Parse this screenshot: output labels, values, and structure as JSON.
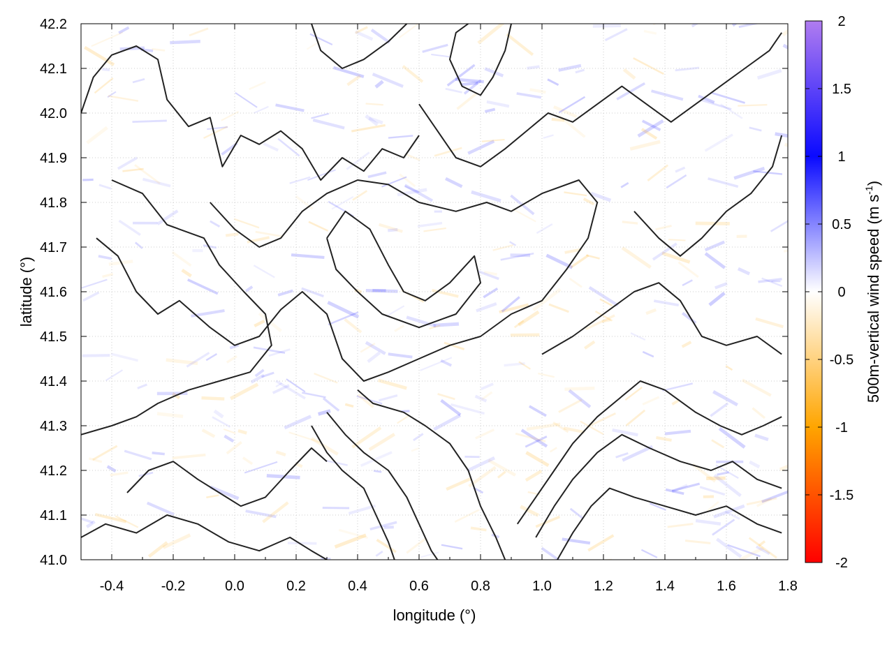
{
  "chart_data": {
    "type": "heatmap",
    "xlabel": "longitude (°)",
    "ylabel": "latitude (°)",
    "xlim": [
      -0.5,
      1.8
    ],
    "ylim": [
      41.0,
      42.2
    ],
    "x_ticks": [
      -0.4,
      -0.2,
      0.0,
      0.2,
      0.4,
      0.6,
      0.8,
      1.0,
      1.2,
      1.4,
      1.6,
      1.8
    ],
    "y_ticks": [
      41.0,
      41.1,
      41.2,
      41.3,
      41.4,
      41.5,
      41.6,
      41.7,
      41.8,
      41.9,
      42.0,
      42.1,
      42.2
    ],
    "x_tick_labels": [
      "-0.4",
      "-0.2",
      "0.0",
      "0.2",
      "0.4",
      "0.6",
      "0.8",
      "1.0",
      "1.2",
      "1.4",
      "1.6",
      "1.8"
    ],
    "y_tick_labels": [
      "41.0",
      "41.1",
      "41.2",
      "41.3",
      "41.4",
      "41.5",
      "41.6",
      "41.7",
      "41.8",
      "41.9",
      "42.0",
      "42.1",
      "42.2"
    ],
    "grid": true,
    "colorbar": {
      "label_main": "500m-vertical wind speed (m s",
      "label_sup": "-1",
      "label_end": ")",
      "range": [
        -2,
        2
      ],
      "ticks": [
        2,
        1.5,
        1,
        0.5,
        0,
        -0.5,
        -1,
        -1.5,
        -2
      ],
      "tick_labels": [
        "2",
        "1.5",
        "1",
        "0.5",
        "0",
        "-0.5",
        "-1",
        "-1.5",
        "-2"
      ],
      "colors": {
        "2": "#b07cf0",
        "1": "#0a0aff",
        "0": "#ffffff",
        "-1": "#ffa500",
        "-2": "#ff0000"
      }
    },
    "contour_color": "#222222",
    "contours": [
      [
        [
          -0.5,
          42.0
        ],
        [
          -0.46,
          42.08
        ],
        [
          -0.4,
          42.13
        ],
        [
          -0.32,
          42.15
        ],
        [
          -0.25,
          42.12
        ],
        [
          -0.22,
          42.03
        ],
        [
          -0.15,
          41.97
        ],
        [
          -0.08,
          41.99
        ],
        [
          -0.04,
          41.88
        ],
        [
          0.02,
          41.95
        ],
        [
          0.08,
          41.93
        ],
        [
          0.15,
          41.96
        ],
        [
          0.22,
          41.92
        ],
        [
          0.28,
          41.85
        ],
        [
          0.35,
          41.9
        ],
        [
          0.42,
          41.87
        ],
        [
          0.48,
          41.92
        ],
        [
          0.55,
          41.9
        ],
        [
          0.6,
          41.95
        ]
      ],
      [
        [
          -0.4,
          41.85
        ],
        [
          -0.3,
          41.82
        ],
        [
          -0.22,
          41.75
        ],
        [
          -0.1,
          41.72
        ],
        [
          -0.05,
          41.66
        ],
        [
          0.03,
          41.6
        ],
        [
          0.1,
          41.55
        ],
        [
          0.12,
          41.48
        ],
        [
          0.05,
          41.42
        ],
        [
          -0.05,
          41.4
        ],
        [
          -0.15,
          41.38
        ],
        [
          -0.25,
          41.35
        ],
        [
          -0.32,
          41.32
        ],
        [
          -0.4,
          41.3
        ],
        [
          -0.5,
          41.28
        ]
      ],
      [
        [
          -0.45,
          41.72
        ],
        [
          -0.38,
          41.68
        ],
        [
          -0.32,
          41.6
        ],
        [
          -0.25,
          41.55
        ],
        [
          -0.18,
          41.58
        ],
        [
          -0.08,
          41.52
        ],
        [
          0.0,
          41.48
        ],
        [
          0.08,
          41.5
        ],
        [
          0.15,
          41.56
        ],
        [
          0.22,
          41.6
        ],
        [
          0.3,
          41.55
        ],
        [
          0.35,
          41.45
        ],
        [
          0.42,
          41.4
        ],
        [
          0.5,
          41.42
        ],
        [
          0.6,
          41.45
        ],
        [
          0.7,
          41.48
        ],
        [
          0.8,
          41.5
        ],
        [
          0.9,
          41.55
        ],
        [
          1.0,
          41.58
        ],
        [
          1.08,
          41.65
        ],
        [
          1.15,
          41.72
        ],
        [
          1.18,
          41.8
        ],
        [
          1.12,
          41.85
        ],
        [
          1.0,
          41.82
        ],
        [
          0.9,
          41.78
        ],
        [
          0.82,
          41.8
        ],
        [
          0.72,
          41.78
        ],
        [
          0.6,
          41.8
        ],
        [
          0.5,
          41.84
        ],
        [
          0.4,
          41.85
        ],
        [
          0.3,
          41.82
        ],
        [
          0.22,
          41.78
        ],
        [
          0.15,
          41.72
        ],
        [
          0.08,
          41.7
        ],
        [
          0.0,
          41.74
        ],
        [
          -0.08,
          41.8
        ]
      ],
      [
        [
          0.3,
          41.72
        ],
        [
          0.36,
          41.78
        ],
        [
          0.44,
          41.74
        ],
        [
          0.5,
          41.66
        ],
        [
          0.55,
          41.6
        ],
        [
          0.62,
          41.58
        ],
        [
          0.7,
          41.62
        ],
        [
          0.78,
          41.68
        ],
        [
          0.8,
          41.62
        ],
        [
          0.72,
          41.55
        ],
        [
          0.6,
          41.52
        ],
        [
          0.48,
          41.55
        ],
        [
          0.4,
          41.6
        ],
        [
          0.33,
          41.65
        ],
        [
          0.3,
          41.72
        ]
      ],
      [
        [
          0.4,
          41.38
        ],
        [
          0.45,
          41.35
        ],
        [
          0.55,
          41.33
        ],
        [
          0.62,
          41.3
        ],
        [
          0.7,
          41.26
        ],
        [
          0.76,
          41.2
        ],
        [
          0.8,
          41.12
        ],
        [
          0.85,
          41.05
        ],
        [
          0.88,
          41.0
        ]
      ],
      [
        [
          0.3,
          41.33
        ],
        [
          0.36,
          41.28
        ],
        [
          0.42,
          41.24
        ],
        [
          0.5,
          41.2
        ],
        [
          0.56,
          41.14
        ],
        [
          0.6,
          41.08
        ],
        [
          0.64,
          41.02
        ],
        [
          0.66,
          41.0
        ]
      ],
      [
        [
          0.25,
          41.3
        ],
        [
          0.3,
          41.24
        ],
        [
          0.35,
          41.2
        ],
        [
          0.42,
          41.16
        ],
        [
          0.46,
          41.1
        ],
        [
          0.5,
          41.04
        ],
        [
          0.52,
          41.0
        ]
      ],
      [
        [
          0.92,
          41.08
        ],
        [
          0.98,
          41.14
        ],
        [
          1.04,
          41.2
        ],
        [
          1.1,
          41.26
        ],
        [
          1.18,
          41.32
        ],
        [
          1.25,
          41.36
        ],
        [
          1.32,
          41.4
        ],
        [
          1.4,
          41.38
        ],
        [
          1.5,
          41.33
        ],
        [
          1.58,
          41.3
        ],
        [
          1.65,
          41.28
        ],
        [
          1.72,
          41.3
        ],
        [
          1.78,
          41.32
        ]
      ],
      [
        [
          0.98,
          41.05
        ],
        [
          1.04,
          41.12
        ],
        [
          1.1,
          41.18
        ],
        [
          1.18,
          41.24
        ],
        [
          1.26,
          41.28
        ],
        [
          1.35,
          41.25
        ],
        [
          1.45,
          41.22
        ],
        [
          1.55,
          41.2
        ],
        [
          1.62,
          41.22
        ],
        [
          1.7,
          41.18
        ],
        [
          1.78,
          41.16
        ]
      ],
      [
        [
          1.05,
          41.0
        ],
        [
          1.1,
          41.06
        ],
        [
          1.16,
          41.12
        ],
        [
          1.22,
          41.16
        ],
        [
          1.3,
          41.14
        ],
        [
          1.4,
          41.12
        ],
        [
          1.5,
          41.1
        ],
        [
          1.6,
          41.12
        ],
        [
          1.7,
          41.08
        ],
        [
          1.78,
          41.06
        ]
      ],
      [
        [
          1.0,
          41.46
        ],
        [
          1.1,
          41.5
        ],
        [
          1.2,
          41.55
        ],
        [
          1.3,
          41.6
        ],
        [
          1.38,
          41.62
        ],
        [
          1.45,
          41.58
        ],
        [
          1.52,
          41.5
        ],
        [
          1.6,
          41.48
        ],
        [
          1.7,
          41.5
        ],
        [
          1.78,
          41.46
        ]
      ],
      [
        [
          1.3,
          41.78
        ],
        [
          1.38,
          41.72
        ],
        [
          1.45,
          41.68
        ],
        [
          1.52,
          41.72
        ],
        [
          1.6,
          41.78
        ],
        [
          1.68,
          41.82
        ],
        [
          1.75,
          41.88
        ],
        [
          1.78,
          41.95
        ]
      ],
      [
        [
          0.6,
          42.02
        ],
        [
          0.66,
          41.96
        ],
        [
          0.72,
          41.9
        ],
        [
          0.8,
          41.88
        ],
        [
          0.88,
          41.92
        ],
        [
          0.95,
          41.96
        ],
        [
          1.02,
          42.0
        ],
        [
          1.1,
          41.98
        ],
        [
          1.18,
          42.02
        ],
        [
          1.26,
          42.06
        ],
        [
          1.34,
          42.02
        ],
        [
          1.42,
          41.98
        ],
        [
          1.5,
          42.02
        ],
        [
          1.58,
          42.06
        ],
        [
          1.66,
          42.1
        ],
        [
          1.74,
          42.14
        ],
        [
          1.78,
          42.18
        ]
      ],
      [
        [
          0.9,
          42.2
        ],
        [
          0.88,
          42.14
        ],
        [
          0.84,
          42.08
        ],
        [
          0.8,
          42.04
        ],
        [
          0.74,
          42.06
        ],
        [
          0.7,
          42.12
        ],
        [
          0.72,
          42.18
        ],
        [
          0.76,
          42.2
        ]
      ],
      [
        [
          0.25,
          42.2
        ],
        [
          0.28,
          42.14
        ],
        [
          0.35,
          42.1
        ],
        [
          0.42,
          42.12
        ],
        [
          0.5,
          42.16
        ],
        [
          0.56,
          42.2
        ]
      ],
      [
        [
          -0.35,
          41.15
        ],
        [
          -0.28,
          41.2
        ],
        [
          -0.2,
          41.22
        ],
        [
          -0.12,
          41.18
        ],
        [
          -0.05,
          41.15
        ],
        [
          0.02,
          41.12
        ],
        [
          0.1,
          41.14
        ],
        [
          0.18,
          41.2
        ],
        [
          0.25,
          41.25
        ],
        [
          0.3,
          41.22
        ]
      ],
      [
        [
          -0.5,
          41.05
        ],
        [
          -0.42,
          41.08
        ],
        [
          -0.32,
          41.06
        ],
        [
          -0.22,
          41.1
        ],
        [
          -0.12,
          41.08
        ],
        [
          -0.02,
          41.04
        ],
        [
          0.08,
          41.02
        ],
        [
          0.18,
          41.05
        ],
        [
          0.25,
          41.02
        ],
        [
          0.3,
          41.0
        ]
      ]
    ]
  }
}
